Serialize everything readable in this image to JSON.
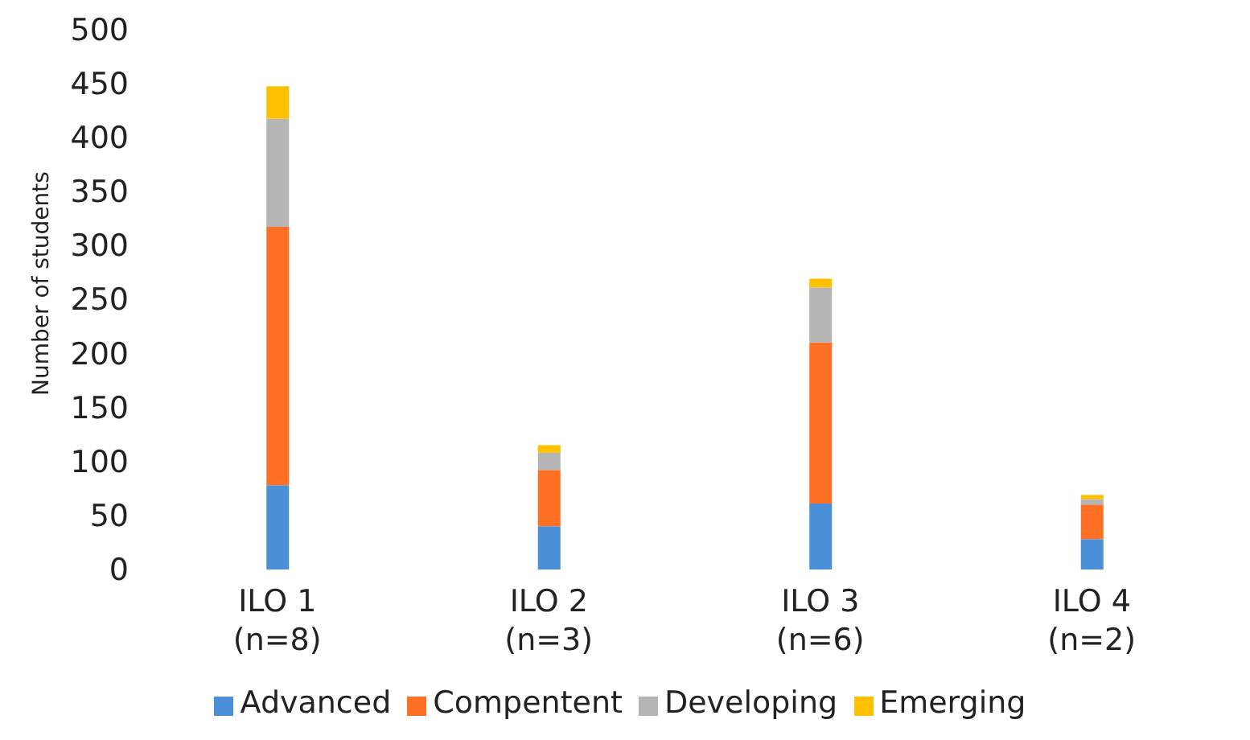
{
  "chart_data": {
    "type": "bar",
    "stacked": true,
    "ylabel": "Number of students",
    "categories": [
      "ILO 1\n(n=8)",
      "ILO 2\n(n=3)",
      "ILO 3\n(n=6)",
      "ILO 4\n(n=2)"
    ],
    "series": [
      {
        "name": "Advanced",
        "color": "#4a8fd8",
        "values": [
          78,
          40,
          61,
          28
        ]
      },
      {
        "name": "Compentent",
        "color": "#ff7024",
        "values": [
          239,
          52,
          149,
          32
        ]
      },
      {
        "name": "Developing",
        "color": "#b5b5b5",
        "values": [
          100,
          16,
          51,
          5
        ]
      },
      {
        "name": "Emerging",
        "color": "#ffc000",
        "values": [
          30,
          7,
          8,
          4
        ]
      }
    ],
    "ylim": [
      0,
      500
    ],
    "yticks": [
      0,
      50,
      100,
      150,
      200,
      250,
      300,
      350,
      400,
      450,
      500
    ],
    "grid": false,
    "legend": "bottom"
  }
}
